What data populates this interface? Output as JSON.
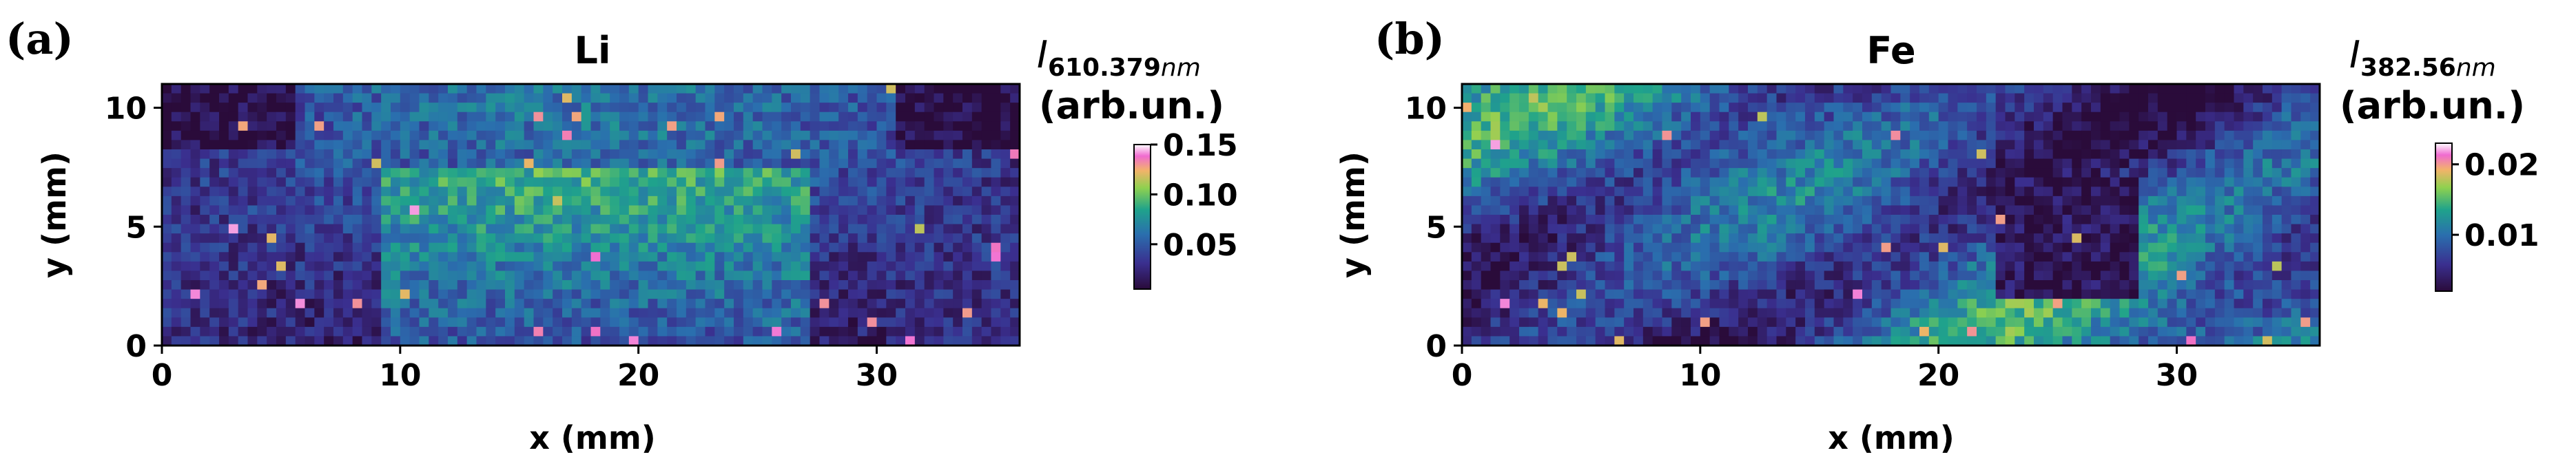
{
  "chart_data": [
    {
      "type": "heatmap",
      "panel_label": "(a)",
      "title": "Li",
      "xlabel": "x (mm)",
      "ylabel": "y (mm)",
      "xlim": [
        0,
        36
      ],
      "ylim": [
        0,
        11
      ],
      "x_ticks": [
        0,
        10,
        20,
        30
      ],
      "y_ticks": [
        0,
        5,
        10
      ],
      "colormap": "dark purple-blue-green-yellow-pink-white",
      "colorbar": {
        "label_symbol": "I",
        "label_subscript": "610.379",
        "label_subscript_unit": "nm",
        "label_units": "(arb.un.)",
        "range": [
          0.005,
          0.15
        ],
        "ticks": [
          0.05,
          0.1,
          0.15
        ],
        "tick_labels": [
          "0.05",
          "0.10",
          "0.15"
        ]
      }
    },
    {
      "type": "heatmap",
      "panel_label": "(b)",
      "title": "Fe",
      "xlabel": "x (mm)",
      "ylabel": "y (mm)",
      "xlim": [
        0,
        36
      ],
      "ylim": [
        0,
        11
      ],
      "x_ticks": [
        0,
        10,
        20,
        30
      ],
      "y_ticks": [
        0,
        5,
        10
      ],
      "colormap": "dark purple-blue-green-yellow-pink-white",
      "colorbar": {
        "label_symbol": "I",
        "label_subscript": "382.56",
        "label_subscript_unit": "nm",
        "label_units": "(arb.un.)",
        "range": [
          0.002,
          0.023
        ],
        "ticks": [
          0.01,
          0.02
        ],
        "tick_labels": [
          "0.01",
          "0.02"
        ]
      }
    }
  ]
}
